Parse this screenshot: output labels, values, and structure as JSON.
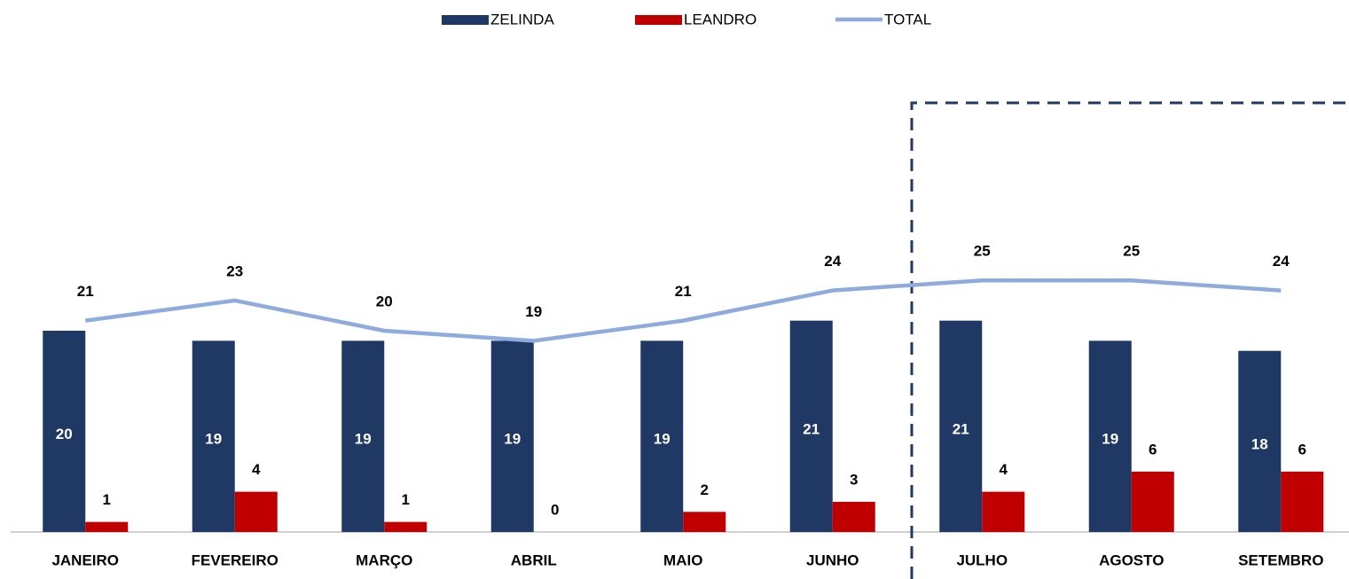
{
  "chart_data": {
    "type": "bar",
    "categories": [
      "JANEIRO",
      "FEVEREIRO",
      "MARÇO",
      "ABRIL",
      "MAIO",
      "JUNHO",
      "JULHO",
      "AGOSTO",
      "SETEMBRO"
    ],
    "series": [
      {
        "name": "ZELINDA",
        "color": "#203864",
        "values": [
          20,
          19,
          19,
          19,
          19,
          21,
          21,
          19,
          18
        ]
      },
      {
        "name": "LEANDRO",
        "color": "#c00000",
        "values": [
          1,
          4,
          1,
          0,
          2,
          3,
          4,
          6,
          6
        ]
      },
      {
        "name": "TOTAL",
        "type": "line",
        "color": "#8faadc",
        "values": [
          21,
          23,
          20,
          19,
          21,
          24,
          25,
          25,
          24
        ]
      }
    ],
    "ylim": [
      0,
      47
    ]
  }
}
